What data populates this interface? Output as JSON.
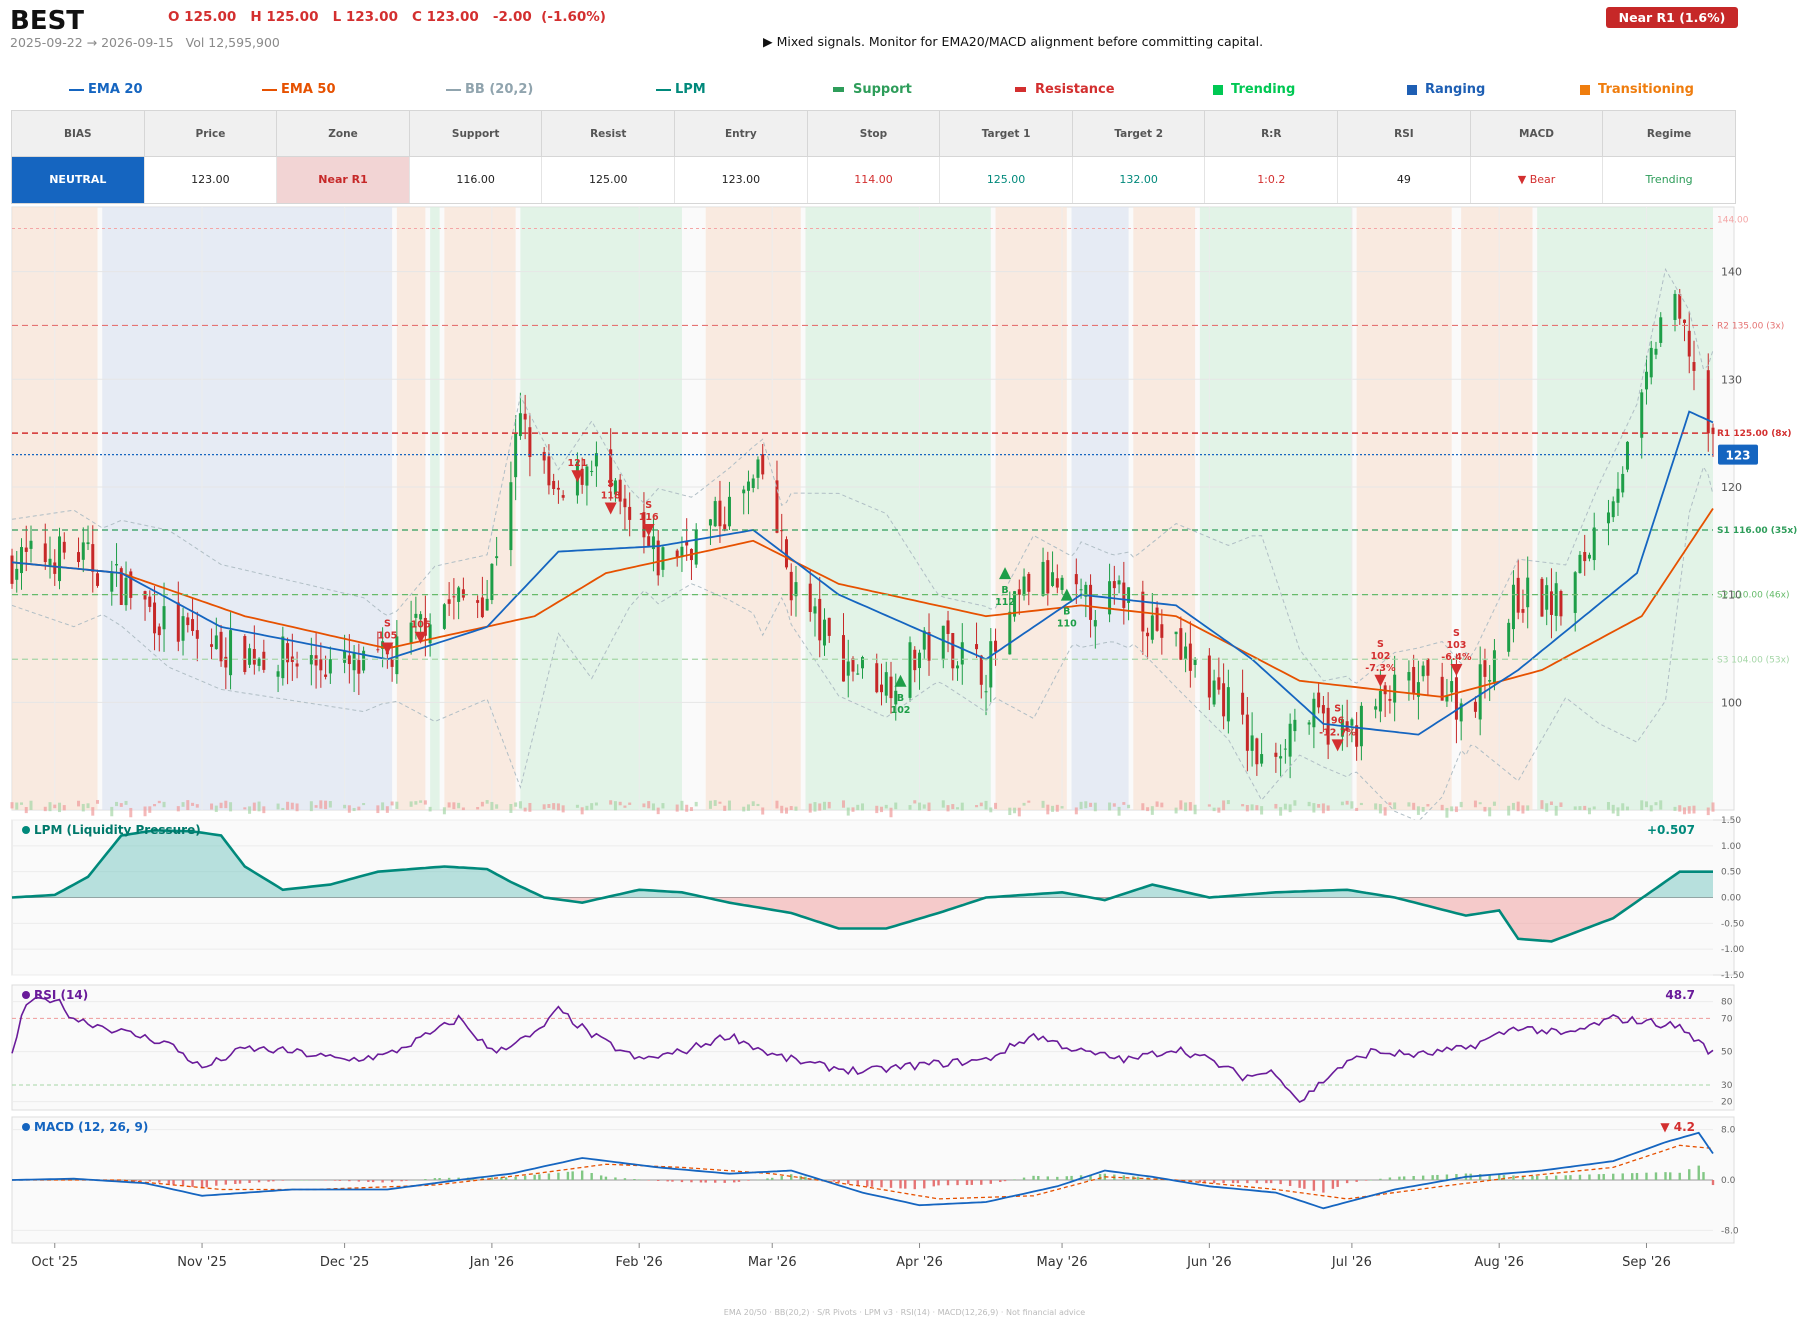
{
  "header": {
    "ticker": "BEST",
    "ohlc": "O 125.00   H 125.00   L 123.00   C 123.00   -2.00  (-1.60%)",
    "range": "2025-09-22 → 2026-09-15   Vol 12,595,900",
    "signal": "▶  Mixed signals. Monitor for EMA20/MACD alignment before committing capital.",
    "zone_badge": "Near R1  (1.6%)"
  },
  "legend": [
    {
      "label": "EMA 20",
      "color": "#1565c0",
      "kind": "line"
    },
    {
      "label": "EMA 50",
      "color": "#e65100",
      "kind": "line"
    },
    {
      "label": "BB (20,2)",
      "color": "#90a4ae",
      "kind": "line"
    },
    {
      "label": "LPM",
      "color": "#00897b",
      "kind": "line"
    },
    {
      "label": "Support",
      "color": "#2e9d5a",
      "kind": "bar"
    },
    {
      "label": "Resistance",
      "color": "#d32f2f",
      "kind": "bar"
    },
    {
      "label": "Trending",
      "color": "#00c853",
      "kind": "square"
    },
    {
      "label": "Ranging",
      "color": "#1e5fb4",
      "kind": "square"
    },
    {
      "label": "Transitioning",
      "color": "#ef7d0e",
      "kind": "square"
    }
  ],
  "table": {
    "headers": [
      "BIAS",
      "Price",
      "Zone",
      "Support",
      "Resist",
      "Entry",
      "Stop",
      "Target 1",
      "Target 2",
      "R:R",
      "RSI",
      "MACD",
      "Regime"
    ],
    "values": [
      "NEUTRAL",
      "123.00",
      "Near R1",
      "116.00",
      "125.00",
      "123.00",
      "114.00",
      "125.00",
      "132.00",
      "1:0.2",
      "49",
      "▼ Bear",
      "Trending"
    ],
    "colors": {
      "bias_bg": "#1565c0",
      "zone_bg": "#f2d4d4",
      "zone_text": "#c62828",
      "stop": "#d32f2f",
      "target": "#00897b",
      "rr": "#d32f2f",
      "macd": "#d32f2f",
      "regime": "#2e9d5a"
    }
  },
  "chart_data": [
    {
      "type": "candlestick",
      "title": "",
      "x_range": [
        "2025-09-22",
        "2026-09-15"
      ],
      "ylim": [
        90,
        146
      ],
      "y_ticks": [
        100,
        110,
        120,
        130,
        140
      ],
      "x_tick_labels": [
        "Oct '25",
        "Nov '25",
        "Dec '25",
        "Jan '26",
        "Feb '26",
        "Mar '26",
        "Apr '26",
        "May '26",
        "Jun '26",
        "Jul '26",
        "Aug '26",
        "Sep '26"
      ],
      "x_tick_dates": [
        "2025-10-01",
        "2025-11-01",
        "2025-12-01",
        "2026-01-01",
        "2026-02-01",
        "2026-03-01",
        "2026-04-01",
        "2026-05-01",
        "2026-06-01",
        "2026-07-01",
        "2026-08-01",
        "2026-09-01"
      ],
      "last_price": "123",
      "close_anchors": [
        [
          "2025-09-22",
          113
        ],
        [
          "2025-10-05",
          114
        ],
        [
          "2025-10-15",
          111
        ],
        [
          "2025-10-25",
          107
        ],
        [
          "2025-11-05",
          105
        ],
        [
          "2025-11-20",
          104
        ],
        [
          "2025-12-05",
          103
        ],
        [
          "2025-12-12",
          104.5
        ],
        [
          "2025-12-20",
          109
        ],
        [
          "2025-12-31",
          110
        ],
        [
          "2026-01-07",
          126
        ],
        [
          "2026-01-15",
          118
        ],
        [
          "2026-01-22",
          123
        ],
        [
          "2026-01-30",
          116
        ],
        [
          "2026-02-05",
          113
        ],
        [
          "2026-02-12",
          115
        ],
        [
          "2026-02-20",
          118
        ],
        [
          "2026-02-27",
          121
        ],
        [
          "2026-03-05",
          111
        ],
        [
          "2026-03-15",
          104
        ],
        [
          "2026-03-25",
          102
        ],
        [
          "2026-04-05",
          106
        ],
        [
          "2026-04-15",
          103
        ],
        [
          "2026-04-25",
          112
        ],
        [
          "2026-05-05",
          109
        ],
        [
          "2026-05-15",
          110
        ],
        [
          "2026-05-25",
          105
        ],
        [
          "2026-06-05",
          100
        ],
        [
          "2026-06-12",
          94
        ],
        [
          "2026-06-20",
          99
        ],
        [
          "2026-06-30",
          97
        ],
        [
          "2026-07-10",
          101
        ],
        [
          "2026-07-20",
          102
        ],
        [
          "2026-07-25",
          99
        ],
        [
          "2026-08-05",
          110
        ],
        [
          "2026-08-15",
          109
        ],
        [
          "2026-08-22",
          117
        ],
        [
          "2026-08-30",
          125
        ],
        [
          "2026-09-05",
          138
        ],
        [
          "2026-09-10",
          133
        ],
        [
          "2026-09-15",
          123
        ]
      ],
      "ema20_anchors": [
        [
          "2025-09-22",
          113
        ],
        [
          "2025-10-15",
          112
        ],
        [
          "2025-11-05",
          107
        ],
        [
          "2025-12-10",
          104
        ],
        [
          "2025-12-31",
          107
        ],
        [
          "2026-01-15",
          114
        ],
        [
          "2026-02-05",
          114.5
        ],
        [
          "2026-02-25",
          116
        ],
        [
          "2026-03-15",
          110
        ],
        [
          "2026-04-15",
          104
        ],
        [
          "2026-05-05",
          110
        ],
        [
          "2026-05-25",
          109
        ],
        [
          "2026-06-10",
          104
        ],
        [
          "2026-06-25",
          98
        ],
        [
          "2026-07-15",
          97
        ],
        [
          "2026-08-05",
          103
        ],
        [
          "2026-08-30",
          112
        ],
        [
          "2026-09-10",
          127
        ],
        [
          "2026-09-15",
          126
        ]
      ],
      "ema50_anchors": [
        [
          "2025-09-22",
          113
        ],
        [
          "2025-10-15",
          112
        ],
        [
          "2025-11-10",
          108
        ],
        [
          "2025-12-10",
          105
        ],
        [
          "2026-01-10",
          108
        ],
        [
          "2026-01-25",
          112
        ],
        [
          "2026-02-25",
          115
        ],
        [
          "2026-03-15",
          111
        ],
        [
          "2026-04-15",
          108
        ],
        [
          "2026-05-05",
          109
        ],
        [
          "2026-05-25",
          108
        ],
        [
          "2026-06-20",
          102
        ],
        [
          "2026-07-20",
          100.5
        ],
        [
          "2026-08-10",
          103
        ],
        [
          "2026-08-31",
          108
        ],
        [
          "2026-09-15",
          118
        ]
      ],
      "regimes": [
        [
          "2025-09-22",
          "2025-10-10",
          "Transitioning"
        ],
        [
          "2025-10-11",
          "2025-12-11",
          "Ranging"
        ],
        [
          "2025-12-12",
          "2025-12-18",
          "Transitioning"
        ],
        [
          "2025-12-19",
          "2025-12-21",
          "Trending"
        ],
        [
          "2025-12-22",
          "2026-01-06",
          "Transitioning"
        ],
        [
          "2026-01-07",
          "2026-02-10",
          "Trending"
        ],
        [
          "2026-02-15",
          "2026-03-07",
          "Transitioning"
        ],
        [
          "2026-03-08",
          "2026-04-16",
          "Trending"
        ],
        [
          "2026-04-17",
          "2026-05-02",
          "Transitioning"
        ],
        [
          "2026-05-03",
          "2026-05-15",
          "Ranging"
        ],
        [
          "2026-05-16",
          "2026-05-29",
          "Transitioning"
        ],
        [
          "2026-05-30",
          "2026-07-01",
          "Trending"
        ],
        [
          "2026-07-02",
          "2026-07-22",
          "Transitioning"
        ],
        [
          "2026-07-24",
          "2026-08-08",
          "Transitioning"
        ],
        [
          "2026-08-09",
          "2026-09-15",
          "Trending"
        ]
      ],
      "levels": [
        {
          "label": "R2 135.00 (3x)",
          "value": 135,
          "color": "#e57373"
        },
        {
          "label": "R1 125.00 (8x)",
          "value": 125,
          "color": "#d32f2f"
        },
        {
          "label": "S1 116.00 (35x)",
          "value": 116,
          "color": "#2e9d5a"
        },
        {
          "label": "S2 110.00 (46x)",
          "value": 110,
          "color": "#66bb6a"
        },
        {
          "label": "S3 104.00 (53x)",
          "value": 104,
          "color": "#a5d6a7"
        },
        {
          "label": "144.00",
          "value": 144,
          "color": "#f4a6a6"
        }
      ],
      "signals": [
        {
          "date": "2025-12-10",
          "kind": "S",
          "price": 105,
          "label": "S|105"
        },
        {
          "date": "2025-12-17",
          "kind": "S",
          "price": 106,
          "label": "106"
        },
        {
          "date": "2026-01-19",
          "kind": "S",
          "price": 121,
          "label": "121"
        },
        {
          "date": "2026-01-26",
          "kind": "S",
          "price": 118,
          "label": "S|118"
        },
        {
          "date": "2026-02-03",
          "kind": "S",
          "price": 116,
          "label": "S|116"
        },
        {
          "date": "2026-03-28",
          "kind": "B",
          "price": 102,
          "label": "B|102"
        },
        {
          "date": "2026-04-19",
          "kind": "B",
          "price": 112,
          "label": "B|112"
        },
        {
          "date": "2026-05-02",
          "kind": "B",
          "price": 110,
          "label": "B|110"
        },
        {
          "date": "2026-06-28",
          "kind": "S",
          "price": 96,
          "label": "S|96|-12.7%"
        },
        {
          "date": "2026-07-07",
          "kind": "S",
          "price": 102,
          "label": "S|102|-7.3%"
        },
        {
          "date": "2026-07-23",
          "kind": "S",
          "price": 103,
          "label": "S|103|-6.4%"
        }
      ]
    },
    {
      "type": "area",
      "title": "LPM (Liquidity Pressure)",
      "last_value": "+0.507",
      "ylim": [
        -1.5,
        1.5
      ],
      "y_tick_labels": [
        "1.50",
        "1.00",
        "0.50",
        "0.00",
        "-0.50",
        "-1.00",
        "-1.50"
      ],
      "anchors": [
        [
          "2025-09-22",
          0
        ],
        [
          "2025-10-01",
          0.05
        ],
        [
          "2025-10-08",
          0.4
        ],
        [
          "2025-10-15",
          1.2
        ],
        [
          "2025-10-22",
          1.3
        ],
        [
          "2025-10-30",
          1.28
        ],
        [
          "2025-11-05",
          1.2
        ],
        [
          "2025-11-10",
          0.6
        ],
        [
          "2025-11-18",
          0.15
        ],
        [
          "2025-11-28",
          0.25
        ],
        [
          "2025-12-08",
          0.5
        ],
        [
          "2025-12-22",
          0.6
        ],
        [
          "2025-12-31",
          0.55
        ],
        [
          "2026-01-05",
          0.3
        ],
        [
          "2026-01-12",
          0
        ],
        [
          "2026-01-20",
          -0.1
        ],
        [
          "2026-02-01",
          0.15
        ],
        [
          "2026-02-10",
          0.1
        ],
        [
          "2026-02-20",
          -0.1
        ],
        [
          "2026-03-05",
          -0.3
        ],
        [
          "2026-03-15",
          -0.6
        ],
        [
          "2026-03-25",
          -0.6
        ],
        [
          "2026-04-05",
          -0.3
        ],
        [
          "2026-04-15",
          0
        ],
        [
          "2026-05-01",
          0.1
        ],
        [
          "2026-05-10",
          -0.05
        ],
        [
          "2026-05-20",
          0.25
        ],
        [
          "2026-06-01",
          0
        ],
        [
          "2026-06-15",
          0.1
        ],
        [
          "2026-06-30",
          0.15
        ],
        [
          "2026-07-10",
          0
        ],
        [
          "2026-07-25",
          -0.35
        ],
        [
          "2026-08-01",
          -0.25
        ],
        [
          "2026-08-05",
          -0.8
        ],
        [
          "2026-08-12",
          -0.85
        ],
        [
          "2026-08-25",
          -0.4
        ],
        [
          "2026-09-01",
          0.05
        ],
        [
          "2026-09-08",
          0.5
        ],
        [
          "2026-09-15",
          0.5
        ]
      ]
    },
    {
      "type": "line",
      "title": "RSI (14)",
      "last_value": "48.7",
      "ylim": [
        15,
        90
      ],
      "y_tick_labels": [
        "80",
        "70",
        "50",
        "30",
        "20"
      ],
      "y_ticks": [
        80,
        70,
        50,
        30,
        20
      ],
      "anchors": [
        [
          "2025-09-22",
          50
        ],
        [
          "2025-09-25",
          79
        ],
        [
          "2025-10-01",
          82
        ],
        [
          "2025-10-05",
          70
        ],
        [
          "2025-10-15",
          62
        ],
        [
          "2025-10-25",
          55
        ],
        [
          "2025-11-01",
          40
        ],
        [
          "2025-11-10",
          52
        ],
        [
          "2025-11-20",
          50
        ],
        [
          "2025-12-01",
          45
        ],
        [
          "2025-12-10",
          48
        ],
        [
          "2025-12-20",
          62
        ],
        [
          "2025-12-25",
          70
        ],
        [
          "2026-01-01",
          50
        ],
        [
          "2026-01-10",
          60
        ],
        [
          "2026-01-15",
          75
        ],
        [
          "2026-01-22",
          60
        ],
        [
          "2026-02-01",
          45
        ],
        [
          "2026-02-10",
          50
        ],
        [
          "2026-02-20",
          60
        ],
        [
          "2026-03-01",
          48
        ],
        [
          "2026-03-10",
          42
        ],
        [
          "2026-03-20",
          38
        ],
        [
          "2026-04-01",
          42
        ],
        [
          "2026-04-15",
          45
        ],
        [
          "2026-04-25",
          60
        ],
        [
          "2026-05-05",
          50
        ],
        [
          "2026-05-15",
          45
        ],
        [
          "2026-05-25",
          52
        ],
        [
          "2026-06-01",
          45
        ],
        [
          "2026-06-08",
          35
        ],
        [
          "2026-06-15",
          38
        ],
        [
          "2026-06-20",
          20
        ],
        [
          "2026-06-28",
          40
        ],
        [
          "2026-07-05",
          50
        ],
        [
          "2026-07-15",
          48
        ],
        [
          "2026-07-25",
          52
        ],
        [
          "2026-08-05",
          65
        ],
        [
          "2026-08-15",
          60
        ],
        [
          "2026-08-25",
          70
        ],
        [
          "2026-09-01",
          68
        ],
        [
          "2026-09-08",
          65
        ],
        [
          "2026-09-15",
          48.7
        ]
      ]
    },
    {
      "type": "line",
      "title": "MACD (12, 26, 9)",
      "last_value": "▼ 4.2",
      "ylim": [
        -10,
        10
      ],
      "y_tick_labels": [
        "8.0",
        "0.0",
        "-8.0"
      ],
      "y_ticks": [
        8,
        0,
        -8
      ],
      "macd_anchors": [
        [
          "2025-09-22",
          0
        ],
        [
          "2025-10-05",
          0.2
        ],
        [
          "2025-10-20",
          -0.5
        ],
        [
          "2025-11-01",
          -2.5
        ],
        [
          "2025-11-20",
          -1.5
        ],
        [
          "2025-12-10",
          -1.5
        ],
        [
          "2025-12-25",
          0
        ],
        [
          "2026-01-05",
          1
        ],
        [
          "2026-01-20",
          3.5
        ],
        [
          "2026-02-05",
          2
        ],
        [
          "2026-02-20",
          1
        ],
        [
          "2026-03-05",
          1.5
        ],
        [
          "2026-03-20",
          -2
        ],
        [
          "2026-04-01",
          -4
        ],
        [
          "2026-04-15",
          -3.5
        ],
        [
          "2026-04-30",
          -1
        ],
        [
          "2026-05-10",
          1.5
        ],
        [
          "2026-05-20",
          0.5
        ],
        [
          "2026-06-01",
          -1
        ],
        [
          "2026-06-15",
          -2
        ],
        [
          "2026-06-25",
          -4.5
        ],
        [
          "2026-07-10",
          -1.5
        ],
        [
          "2026-07-25",
          0.5
        ],
        [
          "2026-08-10",
          1.5
        ],
        [
          "2026-08-25",
          3
        ],
        [
          "2026-09-05",
          6
        ],
        [
          "2026-09-12",
          7.5
        ],
        [
          "2026-09-15",
          4.2
        ]
      ],
      "signal_anchors": [
        [
          "2025-09-22",
          0
        ],
        [
          "2025-10-15",
          0
        ],
        [
          "2025-11-05",
          -1.5
        ],
        [
          "2025-11-25",
          -1.5
        ],
        [
          "2025-12-20",
          -0.8
        ],
        [
          "2026-01-10",
          1
        ],
        [
          "2026-01-25",
          2.5
        ],
        [
          "2026-02-10",
          2
        ],
        [
          "2026-03-01",
          1
        ],
        [
          "2026-03-20",
          -1
        ],
        [
          "2026-04-05",
          -3
        ],
        [
          "2026-04-25",
          -2.5
        ],
        [
          "2026-05-10",
          0.5
        ],
        [
          "2026-05-25",
          0
        ],
        [
          "2026-06-15",
          -1.5
        ],
        [
          "2026-06-30",
          -3
        ],
        [
          "2026-07-20",
          -1
        ],
        [
          "2026-08-05",
          0.5
        ],
        [
          "2026-08-25",
          2
        ],
        [
          "2026-09-08",
          5.5
        ],
        [
          "2026-09-15",
          5
        ]
      ]
    }
  ],
  "footer": "EMA 20/50  ·  BB(20,2)  ·  S/R Pivots  ·  LPM v3  ·  RSI(14)  ·  MACD(12,26,9)  ·  Not financial advice"
}
